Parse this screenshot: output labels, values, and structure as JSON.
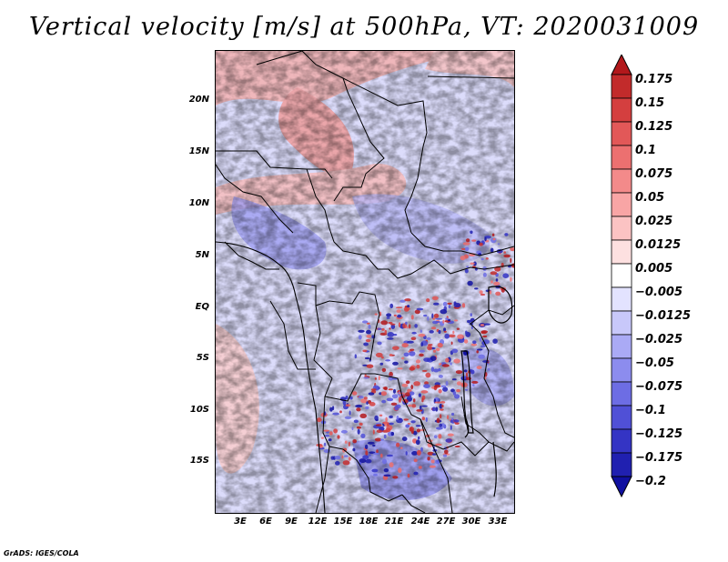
{
  "title": "Vertical velocity [m/s] at 500hPa, VT: 2020031009",
  "map": {
    "variable": "Vertical velocity",
    "units": "m/s",
    "level": "500hPa",
    "valid_time": "2020031009",
    "lat_labels": [
      "20N",
      "15N",
      "10N",
      "5N",
      "EQ",
      "5S",
      "10S",
      "15S"
    ],
    "lon_labels": [
      "3E",
      "6E",
      "9E",
      "12E",
      "15E",
      "18E",
      "21E",
      "24E",
      "27E",
      "30E",
      "33E"
    ]
  },
  "colorbar": {
    "labels": [
      "0.175",
      "0.15",
      "0.125",
      "0.1",
      "0.075",
      "0.05",
      "0.025",
      "0.0125",
      "0.005",
      "−0.005",
      "−0.0125",
      "−0.025",
      "−0.05",
      "−0.075",
      "−0.1",
      "−0.125",
      "−0.175",
      "−0.2"
    ],
    "colors": [
      "#b2181b",
      "#c22b2b",
      "#d43f3f",
      "#e25858",
      "#ec7070",
      "#f38a8a",
      "#f8a5a5",
      "#fbc3c3",
      "#fde0e0",
      "#ffffff",
      "#e3e3ff",
      "#c8c8fa",
      "#aaaaf5",
      "#8c8cee",
      "#6d6de4",
      "#5050d6",
      "#3434c4",
      "#2020b0",
      "#1010a0"
    ]
  },
  "credit": "GrADS: IGES/COLA"
}
